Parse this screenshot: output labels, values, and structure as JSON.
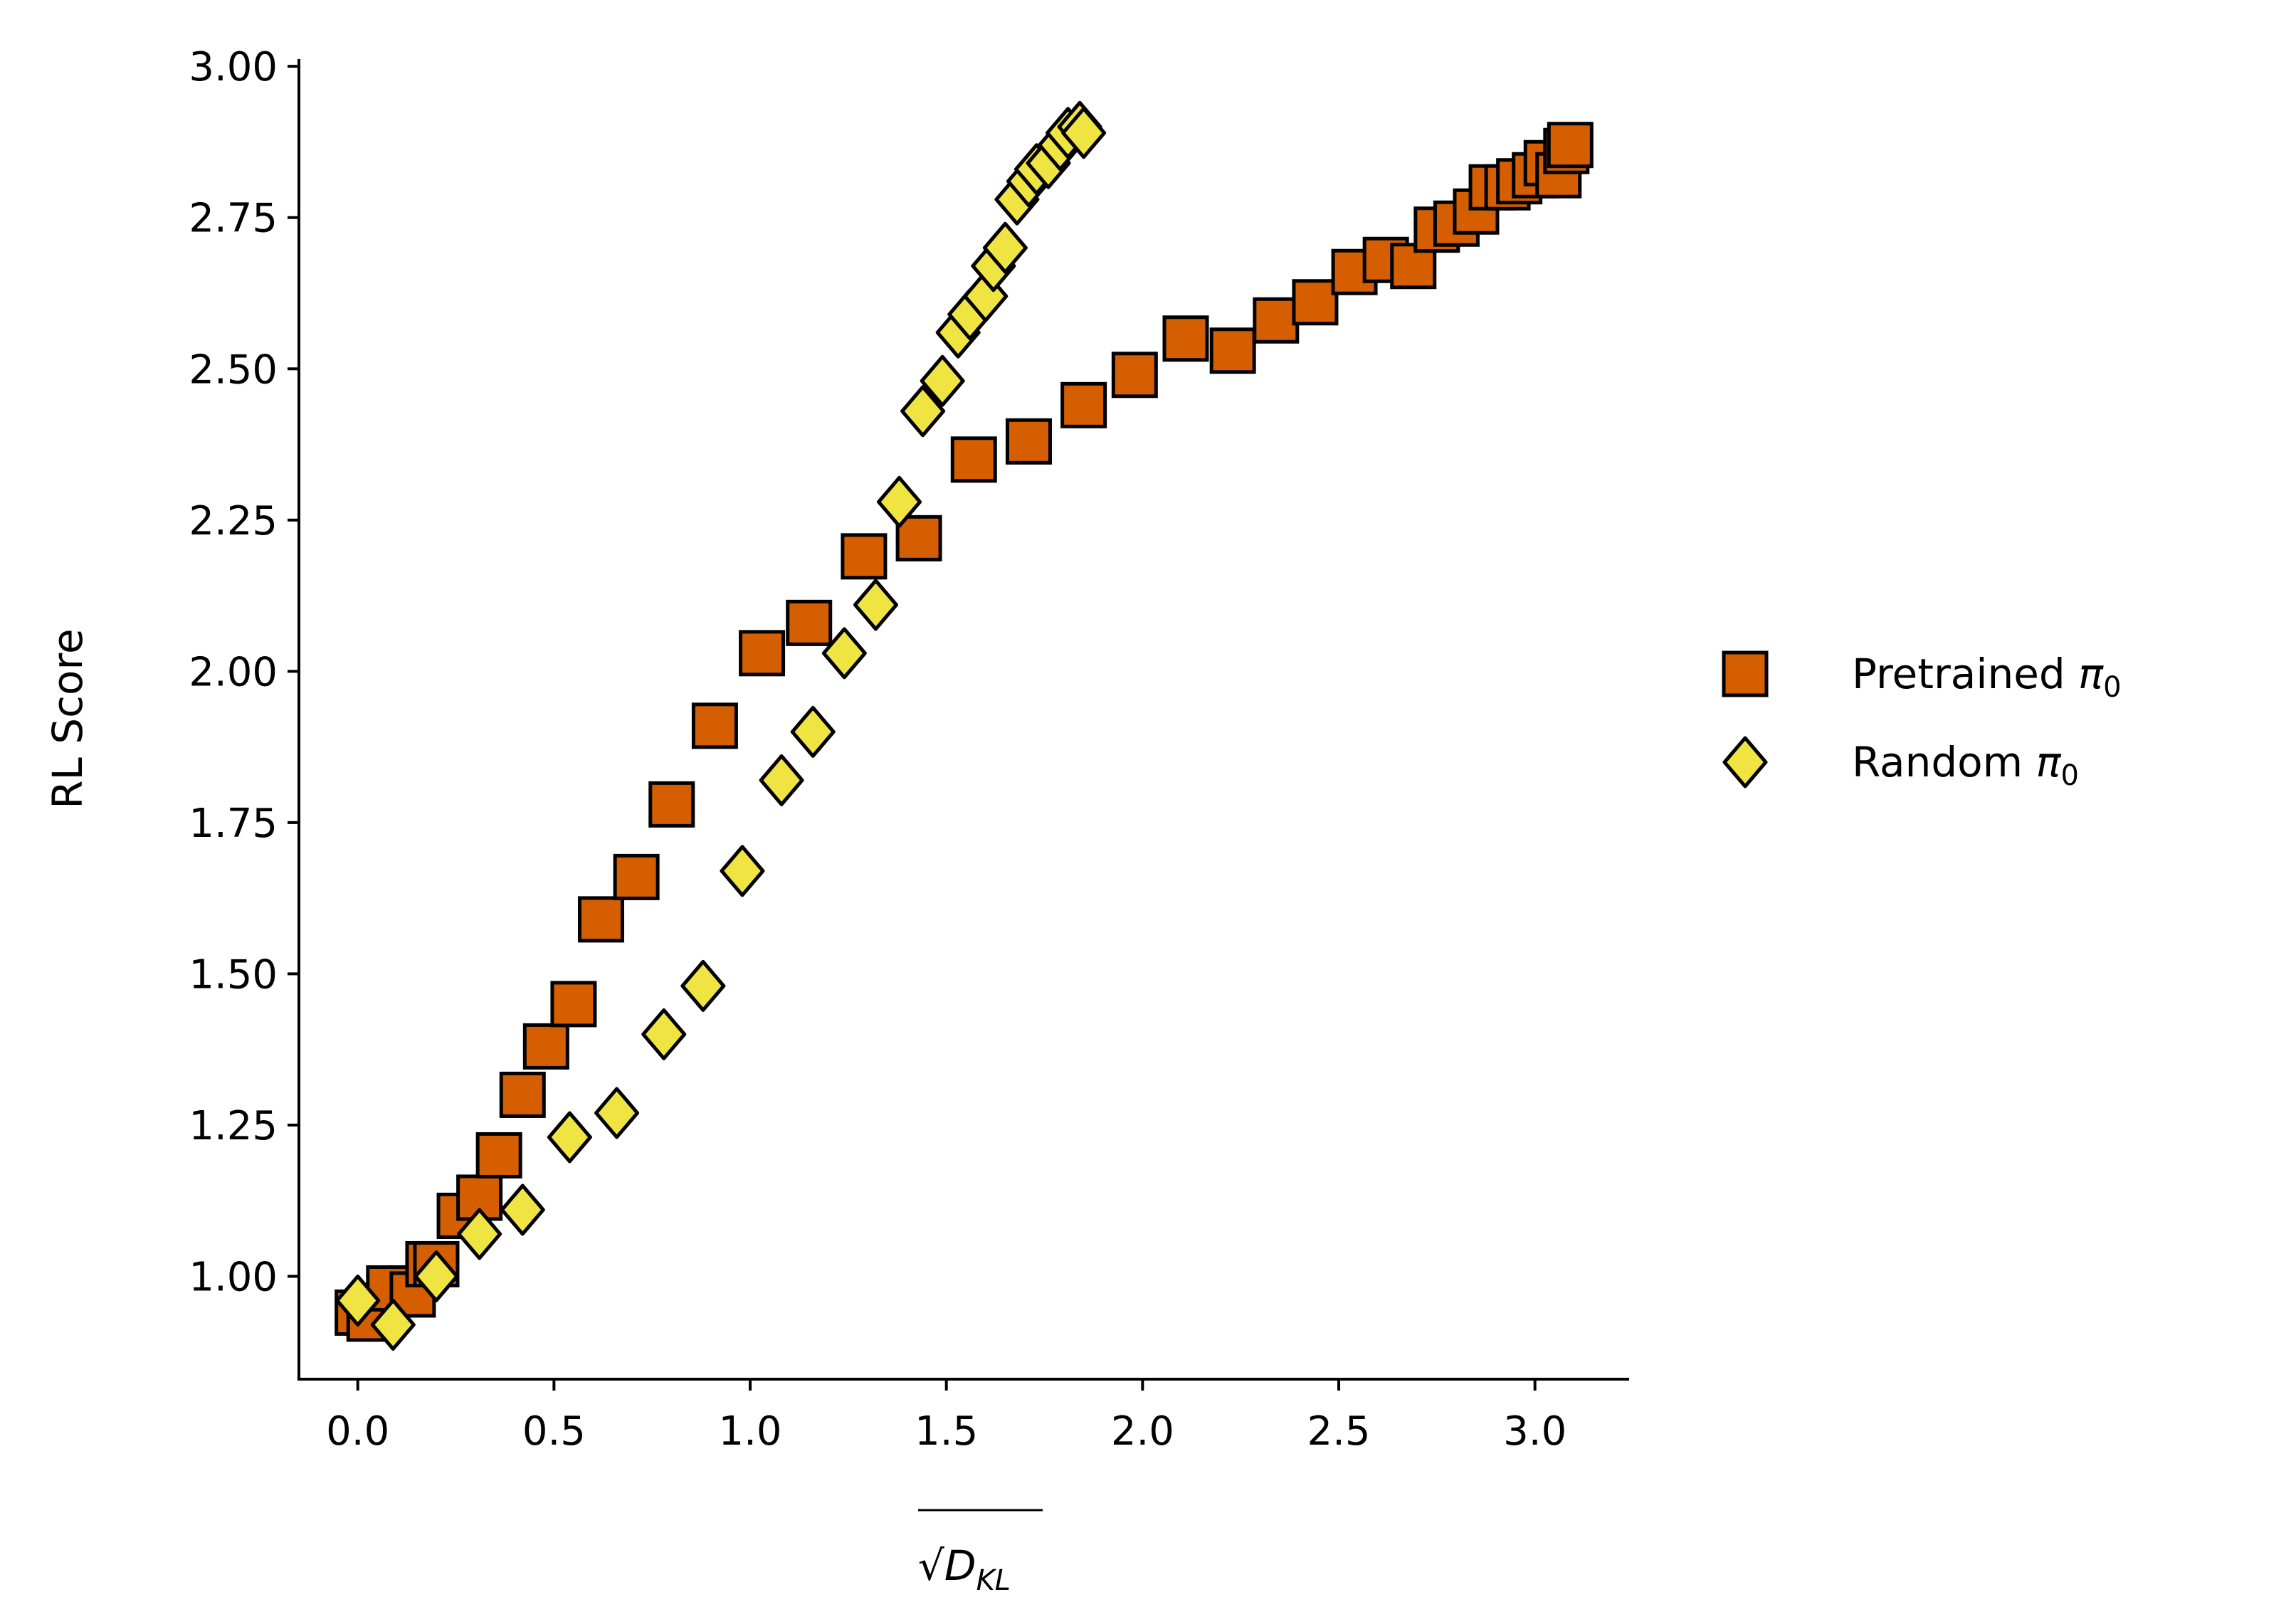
{
  "chart_data": {
    "type": "scatter",
    "title": "",
    "xlabel": "√D_KL",
    "xlabel_parts": {
      "root": "√",
      "base": "D",
      "sub": "KL"
    },
    "ylabel": "RL Score",
    "xlim": [
      -0.15,
      3.24
    ],
    "ylim": [
      0.83,
      3.012
    ],
    "grid": false,
    "legend_position": "right-outside",
    "xticks": [
      0.0,
      0.5,
      1.0,
      1.5,
      2.0,
      2.5,
      3.0
    ],
    "xtick_labels": [
      "0.0",
      "0.5",
      "1.0",
      "1.5",
      "2.0",
      "2.5",
      "3.0"
    ],
    "yticks": [
      1.0,
      1.25,
      1.5,
      1.75,
      2.0,
      2.25,
      2.5,
      2.75,
      3.0
    ],
    "ytick_labels": [
      "1.00",
      "1.25",
      "1.50",
      "1.75",
      "2.00",
      "2.25",
      "2.50",
      "2.75",
      "3.00"
    ],
    "series": [
      {
        "name": "Pretrained π0",
        "label_base": "Pretrained ",
        "label_sym": "π",
        "label_sub": "0",
        "marker": "square",
        "color": "#d55e00",
        "x": [
          0.0,
          0.03,
          0.08,
          0.14,
          0.18,
          0.2,
          0.26,
          0.31,
          0.36,
          0.42,
          0.48,
          0.55,
          0.62,
          0.71,
          0.8,
          0.91,
          1.03,
          1.15,
          1.29,
          1.43,
          1.57,
          1.71,
          1.85,
          1.98,
          2.11,
          2.23,
          2.34,
          2.44,
          2.54,
          2.62,
          2.69,
          2.75,
          2.8,
          2.85,
          2.89,
          2.93,
          2.96,
          3.0,
          3.03,
          3.06,
          3.08,
          3.09
        ],
        "y": [
          0.94,
          0.93,
          0.98,
          0.97,
          1.02,
          1.02,
          1.1,
          1.13,
          1.2,
          1.3,
          1.38,
          1.45,
          1.59,
          1.66,
          1.78,
          1.91,
          2.03,
          2.08,
          2.19,
          2.22,
          2.35,
          2.38,
          2.44,
          2.49,
          2.55,
          2.53,
          2.58,
          2.61,
          2.66,
          2.68,
          2.67,
          2.73,
          2.74,
          2.76,
          2.8,
          2.8,
          2.81,
          2.82,
          2.84,
          2.82,
          2.86,
          2.87
        ]
      },
      {
        "name": "Random π0",
        "label_base": "Random ",
        "label_sym": "π",
        "label_sub": "0",
        "marker": "diamond",
        "color": "#f0e442",
        "x": [
          0.0,
          0.09,
          0.2,
          0.31,
          0.42,
          0.54,
          0.66,
          0.78,
          0.88,
          0.98,
          1.08,
          1.16,
          1.24,
          1.32,
          1.38,
          1.44,
          1.49,
          1.53,
          1.56,
          1.6,
          1.62,
          1.65,
          1.68,
          1.71,
          1.73,
          1.76,
          1.79,
          1.81,
          1.84,
          1.85
        ],
        "y": [
          0.96,
          0.92,
          1.0,
          1.07,
          1.11,
          1.23,
          1.27,
          1.4,
          1.48,
          1.67,
          1.82,
          1.9,
          2.03,
          2.11,
          2.28,
          2.43,
          2.48,
          2.56,
          2.59,
          2.62,
          2.67,
          2.7,
          2.78,
          2.81,
          2.83,
          2.84,
          2.87,
          2.89,
          2.9,
          2.89
        ]
      }
    ]
  }
}
